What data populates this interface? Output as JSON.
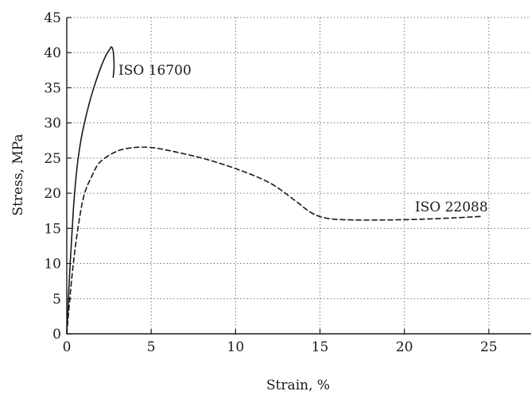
{
  "chart_data": {
    "type": "line",
    "xlabel": "Strain, %",
    "ylabel": "Stress, MPa",
    "xlim": [
      0,
      27.5
    ],
    "ylim": [
      0,
      45
    ],
    "xticks": [
      0,
      5,
      10,
      15,
      20,
      25
    ],
    "yticks": [
      0,
      5,
      10,
      15,
      20,
      25,
      30,
      35,
      40,
      45
    ],
    "grid": "dotted",
    "series": [
      {
        "name": "ISO 16700",
        "style": "solid",
        "color": "#1a1a1a",
        "x": [
          0,
          0.2,
          0.4,
          0.6,
          0.8,
          1.0,
          1.3,
          1.6,
          2.0,
          2.3,
          2.55,
          2.65,
          2.75,
          2.8,
          2.75
        ],
        "y": [
          0,
          10,
          18,
          23.5,
          27,
          29.5,
          32.5,
          35,
          37.8,
          39.5,
          40.5,
          40.8,
          40.2,
          38.0,
          36.5
        ]
      },
      {
        "name": "ISO 22088",
        "style": "dashed",
        "color": "#1a1a1a",
        "x": [
          0,
          0.3,
          0.6,
          1.0,
          1.5,
          2.0,
          3.0,
          4.0,
          5.0,
          6.0,
          8.0,
          10.0,
          12.0,
          13.5,
          14.5,
          15.5,
          17.0,
          19.0,
          21.0,
          23.0,
          24.5
        ],
        "y": [
          0,
          8,
          14,
          19.5,
          22.5,
          24.5,
          26.0,
          26.5,
          26.5,
          26.1,
          25.0,
          23.5,
          21.5,
          19.0,
          17.2,
          16.4,
          16.2,
          16.2,
          16.3,
          16.5,
          16.7
        ]
      }
    ]
  }
}
